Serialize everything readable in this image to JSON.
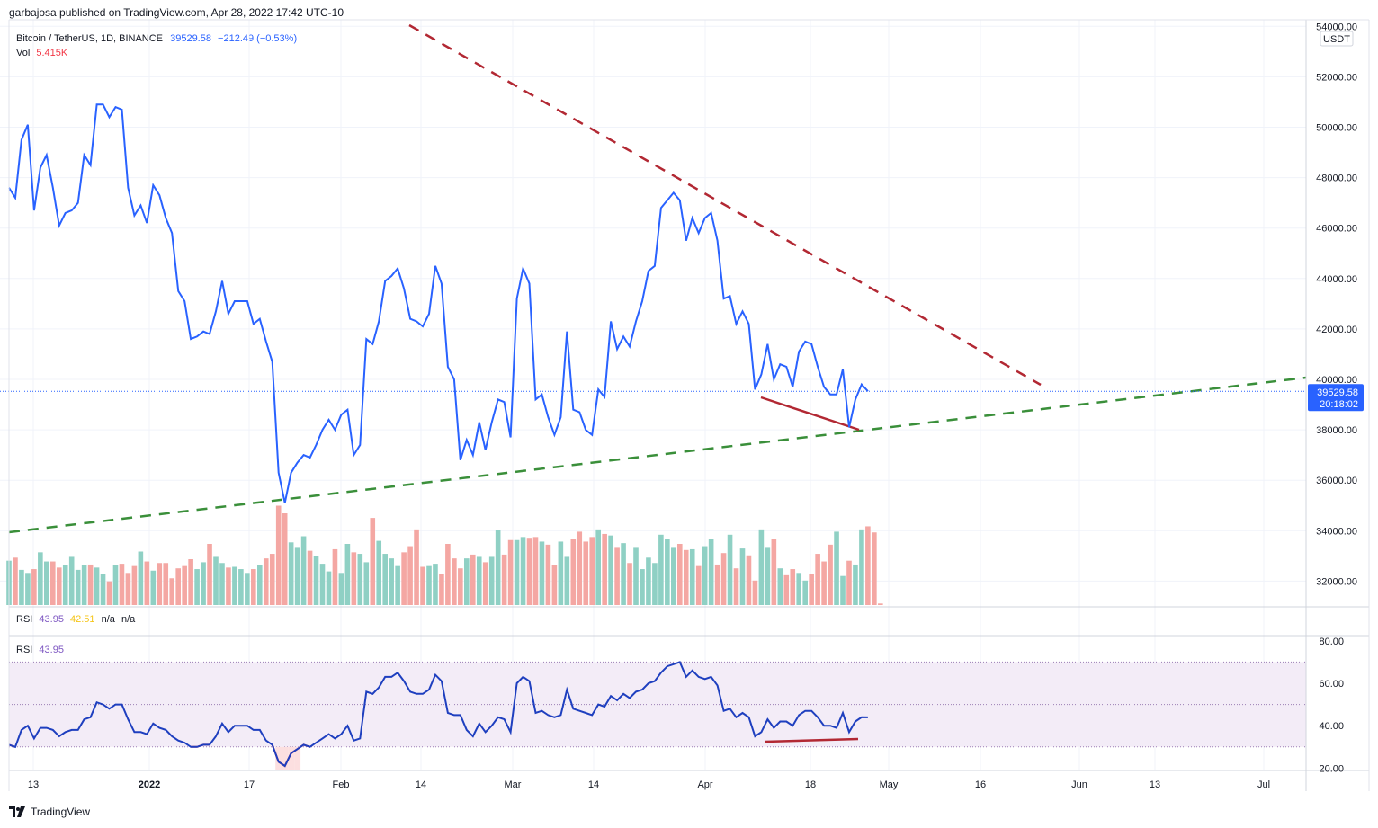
{
  "header": {
    "publish_line": "garbajosa published on TradingView.com, Apr 28, 2022 17:42 UTC-10"
  },
  "legend": {
    "symbol": "Bitcoin / TetherUS, 1D, BINANCE",
    "price": "39529.58",
    "change": "−212.49 (−0.53%)",
    "vol_label": "Vol",
    "vol_value": "5.415K"
  },
  "rsi_legend_top": {
    "label": "RSI",
    "v1": "43.95",
    "v2": "42.51",
    "v3": "n/a",
    "v4": "n/a"
  },
  "rsi_legend_bottom": {
    "label": "RSI",
    "v1": "43.95"
  },
  "price_axis": {
    "currency": "USDT",
    "ticks": [
      "54000.00",
      "52000.00",
      "50000.00",
      "48000.00",
      "46000.00",
      "44000.00",
      "42000.00",
      "40000.00",
      "38000.00",
      "36000.00",
      "34000.00",
      "32000.00"
    ],
    "last_price": "39529.58",
    "countdown": "20:18:02"
  },
  "rsi_axis": {
    "ticks": [
      "80.00",
      "60.00",
      "40.00",
      "20.00"
    ]
  },
  "time_axis": {
    "labels": [
      "13",
      "2022",
      "17",
      "Feb",
      "14",
      "Mar",
      "14",
      "Apr",
      "18",
      "May",
      "16",
      "Jun",
      "13",
      "Jul"
    ]
  },
  "footer": {
    "brand": "TradingView"
  },
  "colors": {
    "price_line": "#2962ff",
    "up_volume": "#8fd0c4",
    "down_volume": "#f4a7a3",
    "rsi_line": "#1e3fbf",
    "rsi_band": "#f3ecf7",
    "resistance_line": "#b22833",
    "support_line": "#3a8f3a",
    "divergence_line": "#b22833"
  },
  "chart_data": [
    {
      "type": "line",
      "title": "Bitcoin / TetherUS, 1D, BINANCE",
      "ylim": [
        31000,
        54500
      ],
      "series": [
        {
          "name": "Bitcoin / TetherUS",
          "values": [
            47600,
            47200,
            49500,
            50100,
            46700,
            48400,
            48900,
            47600,
            46100,
            46600,
            46700,
            47000,
            48900,
            48500,
            50900,
            50900,
            50400,
            50800,
            50700,
            47600,
            46500,
            46900,
            46200,
            47700,
            47300,
            46400,
            45800,
            43500,
            43100,
            41600,
            41700,
            41900,
            41800,
            42700,
            43900,
            42600,
            43100,
            43100,
            43100,
            42200,
            42400,
            41500,
            40700,
            36300,
            35100,
            36300,
            36700,
            37000,
            36900,
            37400,
            38000,
            38400,
            38000,
            38600,
            38800,
            37000,
            37400,
            41600,
            41400,
            42300,
            43900,
            44100,
            44400,
            43600,
            42400,
            42300,
            42100,
            42600,
            44500,
            43800,
            40500,
            40000,
            36800,
            37600,
            37000,
            38300,
            37200,
            38300,
            39200,
            39100,
            37700,
            43200,
            44400,
            43800,
            39200,
            39400,
            38500,
            37800,
            38500,
            41900,
            38800,
            38700,
            38000,
            37800,
            39600,
            39300,
            42300,
            41200,
            41700,
            41300,
            42300,
            43100,
            44300,
            44500,
            46800,
            47100,
            47400,
            47100,
            45500,
            46400,
            45800,
            46400,
            46600,
            45500,
            43200,
            43300,
            42200,
            42700,
            42200,
            39600,
            40200,
            41400,
            40000,
            40600,
            40500,
            39700,
            41100,
            41500,
            41400,
            40500,
            39700,
            39400,
            39400,
            40400,
            38100,
            39200,
            39800,
            39529.58
          ]
        }
      ]
    },
    {
      "type": "bar",
      "title": "Vol",
      "series": [
        {
          "name": "Vol",
          "values": [
            58,
            62,
            46,
            42,
            47,
            69,
            57,
            57,
            49,
            52,
            63,
            46,
            52,
            53,
            49,
            40,
            31,
            52,
            54,
            42,
            51,
            70,
            57,
            45,
            55,
            55,
            35,
            48,
            51,
            60,
            47,
            56,
            80,
            63,
            55,
            49,
            50,
            47,
            42,
            47,
            52,
            61,
            67,
            130,
            120,
            82,
            76,
            90,
            71,
            64,
            54,
            44,
            73,
            42,
            80,
            69,
            67,
            56,
            114,
            84,
            67,
            61,
            51,
            69,
            77,
            99,
            50,
            51,
            54,
            40,
            80,
            61,
            48,
            61,
            66,
            63,
            56,
            63,
            98,
            66,
            85,
            85,
            89,
            88,
            89,
            83,
            79,
            52,
            83,
            63,
            87,
            96,
            83,
            89,
            99,
            93,
            91,
            76,
            81,
            55,
            76,
            47,
            62,
            55,
            92,
            87,
            76,
            80,
            72,
            73,
            51,
            77,
            87,
            53,
            68,
            92,
            48,
            74,
            65,
            32,
            99,
            76,
            87,
            48,
            39,
            47,
            42,
            32,
            41,
            67,
            57,
            79,
            96,
            38,
            58,
            53,
            99,
            103,
            95,
            2
          ]
        }
      ]
    },
    {
      "type": "line",
      "title": "RSI",
      "ylim": [
        20,
        80
      ],
      "series": [
        {
          "name": "RSI",
          "values": [
            31,
            30,
            38,
            40,
            34,
            39,
            39,
            38,
            35,
            37,
            38,
            38,
            43,
            44,
            51,
            50,
            48,
            50,
            50,
            43,
            37,
            37,
            36,
            41,
            39,
            38,
            35,
            33,
            32,
            30,
            30,
            31,
            31,
            35,
            41,
            37,
            40,
            40,
            40,
            38,
            38,
            33,
            31,
            23,
            21,
            27,
            29,
            31,
            30,
            32,
            34,
            36,
            34,
            36,
            40,
            33,
            34,
            56,
            55,
            58,
            63,
            63,
            65,
            61,
            56,
            55,
            55,
            57,
            64,
            61,
            46,
            45,
            45,
            38,
            35,
            41,
            37,
            40,
            44,
            43,
            37,
            60,
            63,
            61,
            46,
            47,
            45,
            44,
            45,
            57,
            48,
            47,
            46,
            45,
            50,
            49,
            54,
            52,
            55,
            53,
            56,
            57,
            60,
            61,
            65,
            68,
            69,
            70,
            63,
            66,
            63,
            62,
            63,
            59,
            47,
            48,
            44,
            46,
            44,
            35,
            37,
            43,
            39,
            42,
            42,
            40,
            45,
            47,
            47,
            44,
            40,
            40,
            39,
            46,
            37,
            42,
            44,
            43.95
          ]
        }
      ]
    }
  ]
}
